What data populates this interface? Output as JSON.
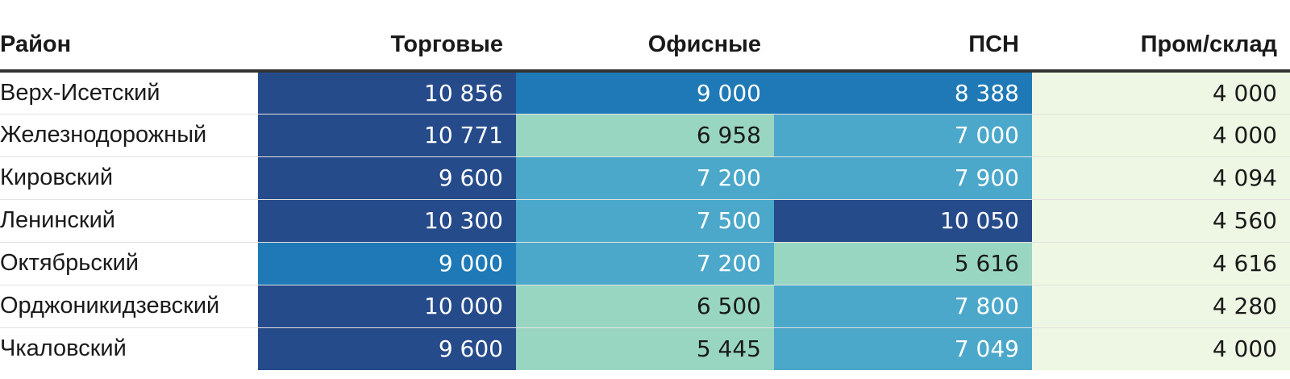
{
  "chart_data": {
    "type": "table",
    "columns": [
      "Район",
      "Торговые",
      "Офисные",
      "ПСН",
      "Пром/склад"
    ],
    "rows": [
      {
        "district": "Верх-Исетский",
        "values": [
          10856,
          9000,
          8388,
          4000
        ],
        "labels": [
          "10 856",
          "9 000",
          "8 388",
          "4 000"
        ]
      },
      {
        "district": "Железнодорожный",
        "values": [
          10771,
          6958,
          7000,
          4000
        ],
        "labels": [
          "10 771",
          "6 958",
          "7 000",
          "4 000"
        ]
      },
      {
        "district": "Кировский",
        "values": [
          9600,
          7200,
          7900,
          4094
        ],
        "labels": [
          "9 600",
          "7 200",
          "7 900",
          "4 094"
        ]
      },
      {
        "district": "Ленинский",
        "values": [
          10300,
          7500,
          10050,
          4560
        ],
        "labels": [
          "10 300",
          "7 500",
          "10 050",
          "4 560"
        ]
      },
      {
        "district": "Октябрьский",
        "values": [
          9000,
          7200,
          5616,
          4616
        ],
        "labels": [
          "9 000",
          "7 200",
          "5 616",
          "4 616"
        ]
      },
      {
        "district": "Орджоникидзевский",
        "values": [
          10000,
          6500,
          7800,
          4280
        ],
        "labels": [
          "10 000",
          "6 500",
          "7 800",
          "4 280"
        ]
      },
      {
        "district": "Чкаловский",
        "values": [
          9600,
          5445,
          7049,
          4000
        ],
        "labels": [
          "9 600",
          "5 445",
          "7 049",
          "4 000"
        ]
      }
    ],
    "color_scale": {
      "type": "threshold",
      "thresholds": [
        5000,
        7000,
        8000,
        9500
      ],
      "colors": [
        "#edf7e3",
        "#98d6c1",
        "#4ba8ca",
        "#1f79b6",
        "#264b8b"
      ],
      "text_colors": [
        "#1a1a1a",
        "#1a1a1a",
        "#ffffff",
        "#ffffff",
        "#ffffff"
      ]
    }
  }
}
